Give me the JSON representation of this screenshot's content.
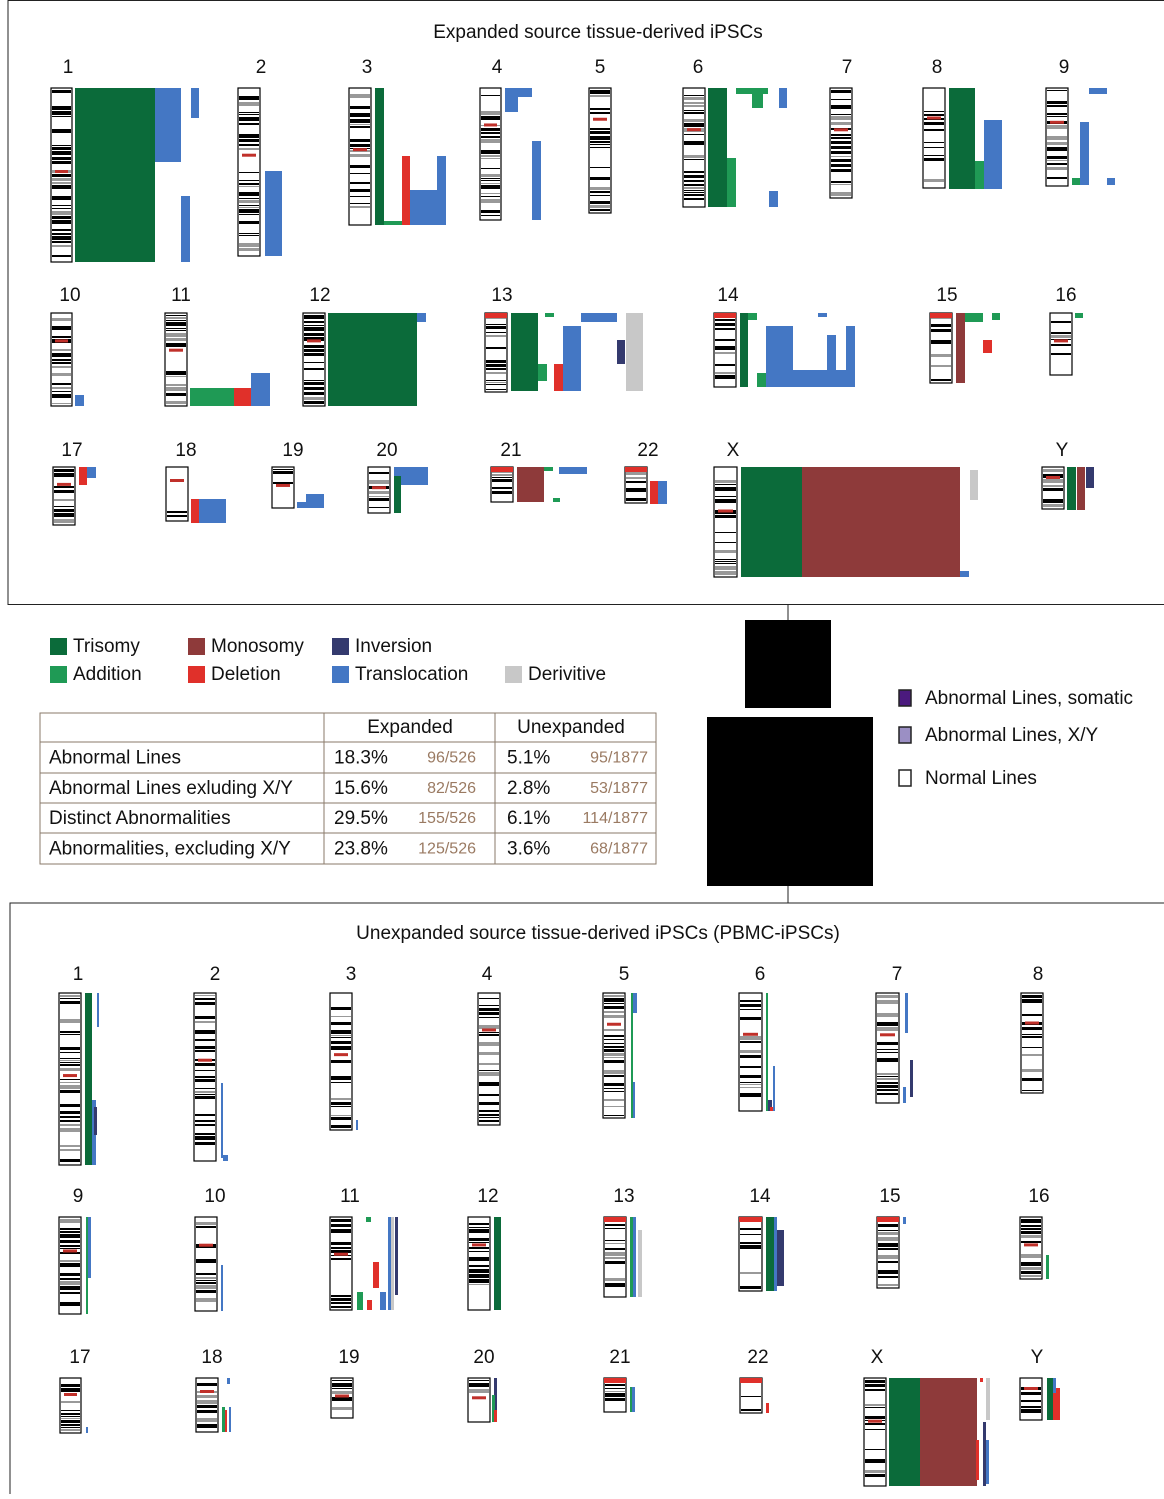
{
  "top_panel": {
    "title": "Expanded source tissue-derived iPSCs",
    "chromosomes": [
      "1",
      "2",
      "3",
      "4",
      "5",
      "6",
      "7",
      "8",
      "9",
      "10",
      "11",
      "12",
      "13",
      "14",
      "15",
      "16",
      "17",
      "18",
      "19",
      "20",
      "21",
      "22",
      "X",
      "Y"
    ]
  },
  "legend": [
    {
      "label": "Trisomy",
      "color": "#0b6b3a"
    },
    {
      "label": "Monosomy",
      "color": "#8e3a3a"
    },
    {
      "label": "Inversion",
      "color": "#343a6e"
    },
    {
      "label": "Addition",
      "color": "#1f9a55"
    },
    {
      "label": "Deletion",
      "color": "#e0302a"
    },
    {
      "label": "Translocation",
      "color": "#4477c4"
    },
    {
      "label": "Derivitive",
      "color": "#c8c8c8"
    }
  ],
  "table": {
    "header": [
      "Expanded",
      "Unexpanded"
    ],
    "rows": [
      {
        "label": "Abnormal Lines",
        "cells": [
          "18.3%",
          "96/526",
          "5.1%",
          "95/1877"
        ]
      },
      {
        "label": "Abnormal Lines exluding X/Y",
        "cells": [
          "15.6%",
          "82/526",
          "2.8%",
          "53/1877"
        ]
      },
      {
        "label": "Distinct Abnormalities",
        "cells": [
          "29.5%",
          "155/526",
          "6.1%",
          "114/1877"
        ]
      },
      {
        "label": "Abnormalities, excluding X/Y",
        "cells": [
          "23.8%",
          "125/526",
          "3.6%",
          "68/1877"
        ]
      }
    ]
  },
  "line_legend": [
    {
      "label": "Abnormal Lines, somatic",
      "color": "#4b1a7e"
    },
    {
      "label": "Abnormal Lines, X/Y",
      "color": "#9b8fc4"
    },
    {
      "label": "Normal Lines",
      "color": "#ffffff"
    }
  ],
  "bottom_panel": {
    "title": "Unexpanded source tissue-derived iPSCs (PBMC-iPSCs)",
    "chromosomes": [
      "1",
      "2",
      "3",
      "4",
      "5",
      "6",
      "7",
      "8",
      "9",
      "10",
      "11",
      "12",
      "13",
      "14",
      "15",
      "16",
      "17",
      "18",
      "19",
      "20",
      "21",
      "22",
      "X",
      "Y"
    ]
  }
}
